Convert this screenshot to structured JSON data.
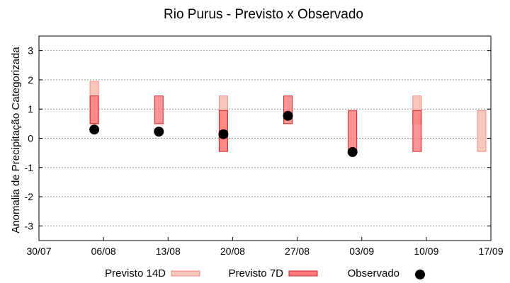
{
  "chart_data": {
    "type": "range-bar",
    "title": "Rio Purus - Previsto x Observado",
    "ylabel": "Anomalia de Precipitação Categorizada",
    "xlabel": "",
    "ylim": [
      -3.5,
      3.5
    ],
    "yticks": [
      -3,
      -2,
      -1,
      0,
      1,
      2,
      3
    ],
    "xlim": [
      "2024-07-30",
      "2024-09-17"
    ],
    "xticks": [
      {
        "date": "2024-07-30",
        "label": "30/07"
      },
      {
        "date": "2024-08-06",
        "label": "06/08"
      },
      {
        "date": "2024-08-13",
        "label": "13/08"
      },
      {
        "date": "2024-08-20",
        "label": "20/08"
      },
      {
        "date": "2024-08-27",
        "label": "27/08"
      },
      {
        "date": "2024-09-03",
        "label": "03/09"
      },
      {
        "date": "2024-09-10",
        "label": "10/09"
      },
      {
        "date": "2024-09-17",
        "label": "17/09"
      }
    ],
    "grid": true,
    "legend_position": "bottom",
    "series": [
      {
        "name": "Previsto 14D",
        "kind": "range",
        "color_fill": "#f8c6bc",
        "color_edge": "#f08c80",
        "points": [
          {
            "x": "2024-08-05",
            "low": 0.5,
            "high": 1.95
          },
          {
            "x": "2024-08-19",
            "low": -0.45,
            "high": 1.45
          },
          {
            "x": "2024-09-09",
            "low": 0.5,
            "high": 1.45
          },
          {
            "x": "2024-09-16",
            "low": -0.45,
            "high": 0.95
          }
        ]
      },
      {
        "name": "Previsto 7D",
        "kind": "range",
        "color_fill": "#ff7b7b",
        "color_edge": "#d42020",
        "points": [
          {
            "x": "2024-08-05",
            "low": 0.5,
            "high": 1.45
          },
          {
            "x": "2024-08-12",
            "low": 0.5,
            "high": 1.45
          },
          {
            "x": "2024-08-19",
            "low": -0.45,
            "high": 0.95
          },
          {
            "x": "2024-08-26",
            "low": 0.5,
            "high": 1.45
          },
          {
            "x": "2024-09-02",
            "low": -0.45,
            "high": 0.95
          },
          {
            "x": "2024-09-09",
            "low": -0.45,
            "high": 0.95
          }
        ]
      },
      {
        "name": "Observado",
        "kind": "point",
        "color": "#000000",
        "points": [
          {
            "x": "2024-08-05",
            "y": 0.3
          },
          {
            "x": "2024-08-12",
            "y": 0.23
          },
          {
            "x": "2024-08-19",
            "y": 0.14
          },
          {
            "x": "2024-08-26",
            "y": 0.77
          },
          {
            "x": "2024-09-02",
            "y": -0.47
          }
        ]
      }
    ]
  }
}
